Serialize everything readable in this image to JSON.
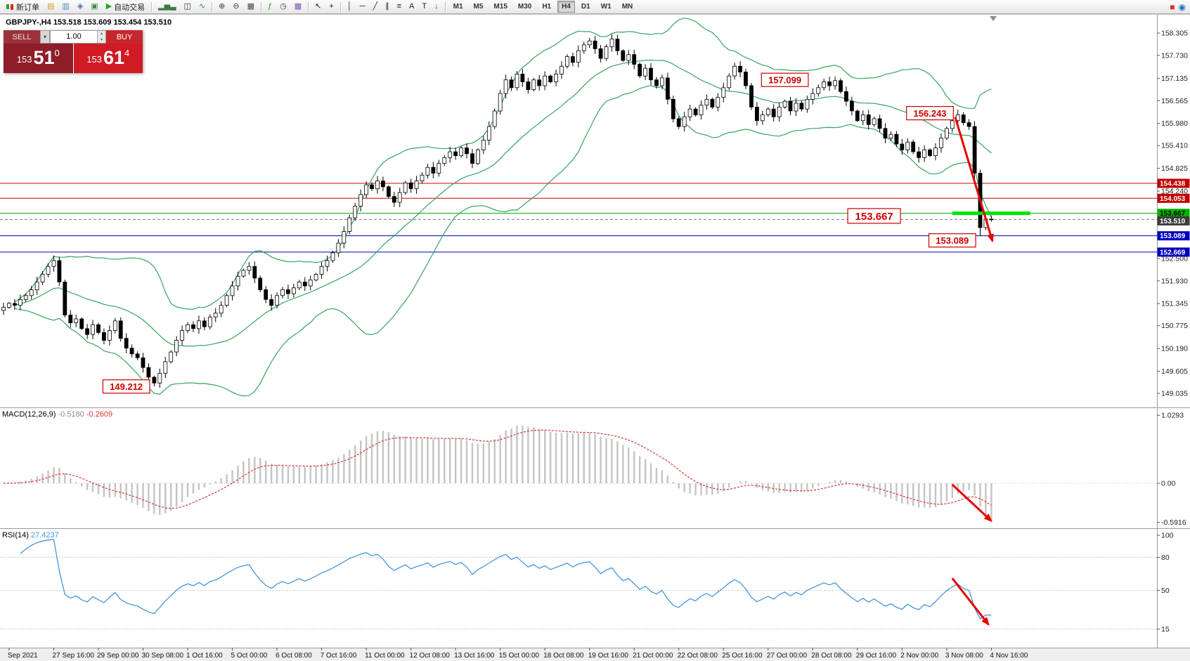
{
  "colors": {
    "sell_button": "#9b323b",
    "buy_button": "#c6262e",
    "sell_price_bg": "#8e1d27",
    "buy_price_bg": "#d01a24",
    "resistance_line": "#d40000",
    "pivot_line": "#00aa00",
    "support_line": "#0000aa",
    "bollinger": "#37a45f",
    "candle_up": "#ffffff",
    "candle_down": "#000000",
    "macd_histogram": "#c4c4c4",
    "macd_signal": "#e03232",
    "rsi_line": "#4596e0",
    "annotation": "#cc0000",
    "arrow": "#e80000",
    "highlight_segment": "#00e400",
    "axis_marker_red": "#c00000",
    "axis_marker_green": "#00b400",
    "axis_marker_blue": "#0000bb",
    "axis_marker_current": "#3c3c3c"
  },
  "icons": {
    "chevron_down": "▾",
    "spinner_up": "▲",
    "spinner_down": "▼"
  },
  "toolbar": {
    "items": [
      {
        "type": "button",
        "name": "new-order-button",
        "icon": "new-order-icon",
        "label": "新订单"
      },
      {
        "type": "icon-button",
        "name": "market-watch-button",
        "icon": "market-watch-icon",
        "glyph": "▤",
        "color": "#c9a227"
      },
      {
        "type": "icon-button",
        "name": "data-window-button",
        "icon": "data-window-icon",
        "glyph": "▥",
        "color": "#4a8ab5"
      },
      {
        "type": "icon-button",
        "name": "navigator-button",
        "icon": "navigator-icon",
        "glyph": "◈",
        "color": "#4a6fb5"
      },
      {
        "type": "icon-button",
        "name": "terminal-button",
        "icon": "terminal-icon",
        "glyph": "▣",
        "color": "#3f8a4f"
      },
      {
        "type": "button",
        "name": "autotrade-button",
        "icon": "autotrade-play-icon",
        "glyph": "▶",
        "color": "#1faa1f",
        "label": "自动交易"
      },
      {
        "type": "sep"
      },
      {
        "type": "icon-button",
        "name": "bar-chart-button",
        "icon": "bar-chart-icon",
        "glyph": "▂▅▃",
        "color": "#3a7d44"
      },
      {
        "type": "icon-button",
        "name": "candlestick-chart-button",
        "icon": "candlestick-chart-icon",
        "glyph": "◫",
        "color": "#333333"
      },
      {
        "type": "icon-button",
        "name": "line-chart-button",
        "icon": "line-chart-icon",
        "glyph": "∿",
        "color": "#2a6fbf"
      },
      {
        "type": "sep"
      },
      {
        "type": "icon-button",
        "name": "zoom-in-button",
        "icon": "zoom-in-icon",
        "glyph": "⊕",
        "color": "#444444"
      },
      {
        "type": "icon-button",
        "name": "zoom-out-button",
        "icon": "zoom-out-icon",
        "glyph": "⊖",
        "color": "#444444"
      },
      {
        "type": "icon-button",
        "name": "tile-windows-button",
        "icon": "tile-windows-icon",
        "glyph": "▦",
        "color": "#444444"
      },
      {
        "type": "sep"
      },
      {
        "type": "icon-button",
        "name": "indicators-button",
        "icon": "indicators-icon",
        "glyph": "ƒ",
        "color": "#2f8a2f"
      },
      {
        "type": "icon-button",
        "name": "periods-button",
        "icon": "periods-icon",
        "glyph": "◷",
        "color": "#444444"
      },
      {
        "type": "icon-button",
        "name": "templates-button",
        "icon": "templates-icon",
        "glyph": "▩",
        "color": "#7a5ab5"
      },
      {
        "type": "sep"
      },
      {
        "type": "icon-button",
        "name": "cursor-button",
        "icon": "cursor-icon",
        "glyph": "↖",
        "color": "#222222"
      },
      {
        "type": "icon-button",
        "name": "crosshair-button",
        "icon": "crosshair-icon",
        "glyph": "+",
        "color": "#222222"
      },
      {
        "type": "sep"
      },
      {
        "type": "icon-button",
        "name": "vertical-line-button",
        "icon": "vertical-line-icon",
        "glyph": "│",
        "color": "#222222"
      },
      {
        "type": "icon-button",
        "name": "horizontal-line-button",
        "icon": "horizontal-line-icon",
        "glyph": "─",
        "color": "#222222"
      },
      {
        "type": "icon-button",
        "name": "trendline-button",
        "icon": "trendline-icon",
        "glyph": "╱",
        "color": "#222222"
      },
      {
        "type": "icon-button",
        "name": "channel-button",
        "icon": "equidistant-channel-icon",
        "glyph": "∥",
        "color": "#222222"
      },
      {
        "type": "icon-button",
        "name": "fibonacci-button",
        "icon": "fibonacci-icon",
        "glyph": "≡",
        "color": "#222222"
      },
      {
        "type": "icon-button",
        "name": "text-button",
        "icon": "text-icon",
        "glyph": "A",
        "color": "#222222"
      },
      {
        "type": "icon-button",
        "name": "text-label-button",
        "icon": "text-label-icon",
        "glyph": "T",
        "color": "#222222"
      },
      {
        "type": "icon-button",
        "name": "arrows-button",
        "icon": "arrow-objects-icon",
        "glyph": "↓",
        "color": "#b22222"
      },
      {
        "type": "sep"
      },
      {
        "type": "timeframes"
      }
    ],
    "timeframes": [
      "M1",
      "M5",
      "M15",
      "M30",
      "H1",
      "H4",
      "D1",
      "W1",
      "MN"
    ],
    "active_timeframe": "H4",
    "right_icons": [
      {
        "name": "record-icon",
        "glyph": "■",
        "color": "#d93025"
      },
      {
        "name": "community-icon",
        "glyph": "◉",
        "color": "#1a73c9"
      }
    ]
  },
  "quote_bar": {
    "text": "GBPJPY-,H4  153.518 153.609 153.454 153.510"
  },
  "trade_panel": {
    "sell_label": "SELL",
    "buy_label": "BUY",
    "volume": "1.00",
    "sell_price": {
      "small": "153",
      "big": "51",
      "sup": "0"
    },
    "buy_price": {
      "small": "153",
      "big": "61",
      "sup": "4"
    }
  },
  "chart_data": {
    "type": "candlestick",
    "symbol": "GBPJPY-",
    "timeframe": "H4",
    "title": "GBPJPY-,H4",
    "current_bar": {
      "open": 153.518,
      "high": 153.609,
      "low": 153.454,
      "close": 153.51
    },
    "current_price": 153.51,
    "closes": [
      151.25,
      151.35,
      151.3,
      151.45,
      151.55,
      151.7,
      151.9,
      152.1,
      152.3,
      152.45,
      151.9,
      151.05,
      150.85,
      150.95,
      150.7,
      150.55,
      150.8,
      150.6,
      150.4,
      150.65,
      150.9,
      150.45,
      150.2,
      150.05,
      149.95,
      149.7,
      149.45,
      149.3,
      149.55,
      149.85,
      150.1,
      150.4,
      150.65,
      150.8,
      150.7,
      150.9,
      150.75,
      151.0,
      151.1,
      151.3,
      151.55,
      151.8,
      152.05,
      152.2,
      152.3,
      152.0,
      151.7,
      151.45,
      151.3,
      151.55,
      151.7,
      151.6,
      151.75,
      151.9,
      151.8,
      151.95,
      152.1,
      152.3,
      152.45,
      152.65,
      152.9,
      153.2,
      153.55,
      153.85,
      154.15,
      154.4,
      154.3,
      154.5,
      154.35,
      154.1,
      153.95,
      154.2,
      154.45,
      154.3,
      154.5,
      154.65,
      154.85,
      154.7,
      154.95,
      155.1,
      155.25,
      155.15,
      155.35,
      155.2,
      154.95,
      155.3,
      155.55,
      155.9,
      156.3,
      156.75,
      157.1,
      156.9,
      157.25,
      157.05,
      156.85,
      157.1,
      156.95,
      157.2,
      157.05,
      157.25,
      157.45,
      157.7,
      157.55,
      157.85,
      158.0,
      158.1,
      157.9,
      157.65,
      157.95,
      158.15,
      157.85,
      157.6,
      157.75,
      157.5,
      157.2,
      157.4,
      157.1,
      156.95,
      157.15,
      156.6,
      156.1,
      155.9,
      156.15,
      156.35,
      156.2,
      156.45,
      156.6,
      156.4,
      156.65,
      156.9,
      157.2,
      157.45,
      157.3,
      156.95,
      156.4,
      156.05,
      156.2,
      156.35,
      156.15,
      156.4,
      156.55,
      156.3,
      156.5,
      156.35,
      156.6,
      156.75,
      156.9,
      157.05,
      156.95,
      157.08,
      156.8,
      156.55,
      156.3,
      156.05,
      156.2,
      155.95,
      156.1,
      155.85,
      155.6,
      155.7,
      155.45,
      155.3,
      155.5,
      155.25,
      155.1,
      155.3,
      155.15,
      155.35,
      155.6,
      155.85,
      156.05,
      156.2,
      156.0,
      155.9,
      154.7,
      153.3,
      153.52,
      153.51
    ],
    "key_highs": [
      {
        "bar": 149,
        "high": 157.099
      },
      {
        "bar": 171,
        "high": 156.243
      }
    ],
    "key_lows": [
      {
        "bar": 27,
        "low": 149.212
      },
      {
        "bar": 175,
        "low": 153.089
      }
    ],
    "bollinger": {
      "period": 20,
      "deviation": 2
    },
    "y_axis": {
      "min": 149.035,
      "max": 158.305,
      "ticks": [
        158.305,
        157.73,
        157.135,
        156.565,
        155.98,
        155.41,
        154.825,
        154.24,
        152.5,
        151.93,
        151.345,
        150.775,
        150.19,
        149.605,
        149.035
      ]
    },
    "hlines": [
      {
        "price": 154.438,
        "kind": "resistance"
      },
      {
        "price": 154.053,
        "kind": "resistance"
      },
      {
        "price": 153.667,
        "kind": "pivot"
      },
      {
        "price": 153.089,
        "kind": "support"
      },
      {
        "price": 152.669,
        "kind": "support"
      }
    ],
    "axis_markers": [
      {
        "price": 154.438,
        "kind": "red"
      },
      {
        "price": 154.053,
        "kind": "red"
      },
      {
        "price": 153.667,
        "kind": "green"
      },
      {
        "price": 153.51,
        "kind": "current"
      },
      {
        "price": 153.089,
        "kind": "blue"
      },
      {
        "price": 152.669,
        "kind": "blue"
      }
    ],
    "green_segment": {
      "price": 153.667,
      "from_bar": 170,
      "to_bar": 184
    },
    "annotations": [
      {
        "text": "157.099",
        "bar": 140,
        "price": 157.099
      },
      {
        "text": "156.243",
        "bar": 166,
        "price": 156.243
      },
      {
        "text": "153.667",
        "bar": 156,
        "price": 153.6,
        "big": true
      },
      {
        "text": "153.089",
        "bar": 170,
        "price": 152.97
      },
      {
        "text": "149.212",
        "bar": 22,
        "price": 149.212
      }
    ],
    "arrows": [
      {
        "panel": "main",
        "from": {
          "bar": 170.5,
          "price": 156.15
        },
        "to": {
          "bar": 177.2,
          "price": 152.95
        }
      },
      {
        "panel": "macd",
        "from": {
          "bar": 170,
          "value": -0.02
        },
        "to": {
          "bar": 177,
          "value": -0.57
        }
      },
      {
        "panel": "rsi",
        "from": {
          "bar": 170,
          "value": 61
        },
        "to": {
          "bar": 176.5,
          "value": 19
        }
      }
    ],
    "x_axis": {
      "labels": [
        {
          "bar": 1,
          "text": "Sep 2021"
        },
        {
          "bar": 9,
          "text": "27 Sep 16:00"
        },
        {
          "bar": 17,
          "text": "29 Sep 00:00"
        },
        {
          "bar": 25,
          "text": "30 Sep 08:00"
        },
        {
          "bar": 33,
          "text": "1 Oct 16:00"
        },
        {
          "bar": 41,
          "text": "5 Oct 00:00"
        },
        {
          "bar": 49,
          "text": "6 Oct 08:00"
        },
        {
          "bar": 57,
          "text": "7 Oct 16:00"
        },
        {
          "bar": 65,
          "text": "11 Oct 00:00"
        },
        {
          "bar": 73,
          "text": "12 Oct 08:00"
        },
        {
          "bar": 81,
          "text": "13 Oct 16:00"
        },
        {
          "bar": 89,
          "text": "15 Oct 00:00"
        },
        {
          "bar": 97,
          "text": "18 Oct 08:00"
        },
        {
          "bar": 105,
          "text": "19 Oct 16:00"
        },
        {
          "bar": 113,
          "text": "21 Oct 00:00"
        },
        {
          "bar": 121,
          "text": "22 Oct 08:00"
        },
        {
          "bar": 129,
          "text": "25 Oct 16:00"
        },
        {
          "bar": 137,
          "text": "27 Oct 00:00"
        },
        {
          "bar": 145,
          "text": "28 Oct 08:00"
        },
        {
          "bar": 153,
          "text": "29 Oct 16:00"
        },
        {
          "bar": 161,
          "text": "2 Nov 00:00"
        },
        {
          "bar": 169,
          "text": "3 Nov 08:00"
        },
        {
          "bar": 177,
          "text": "4 Nov 16:00"
        }
      ]
    },
    "macd": {
      "label": "MACD(12,26,9)",
      "main_value": "-0.5180",
      "signal_value": "-0.2609",
      "params": [
        12,
        26,
        9
      ],
      "scale": [
        {
          "v": 1.0293,
          "t": "1.0293"
        },
        {
          "v": 0,
          "t": "0.00"
        },
        {
          "v": -0.5916,
          "t": "-0.5916"
        }
      ]
    },
    "rsi": {
      "label": "RSI(14)",
      "value": "27.4237",
      "period": 14,
      "scale": [
        {
          "v": 100,
          "t": "100"
        },
        {
          "v": 80,
          "t": "80"
        },
        {
          "v": 50,
          "t": "50"
        },
        {
          "v": 15,
          "t": "15"
        }
      ],
      "levels": [
        80,
        50,
        15
      ]
    }
  }
}
